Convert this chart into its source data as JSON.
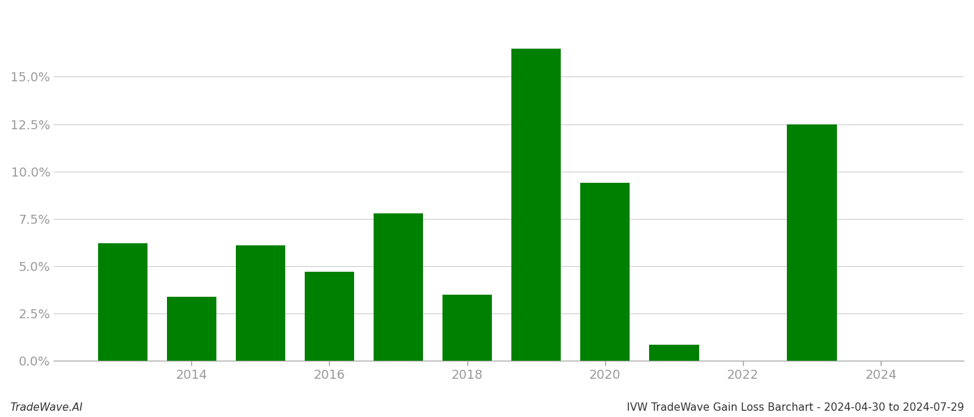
{
  "years": [
    2013,
    2014,
    2015,
    2016,
    2017,
    2018,
    2019,
    2020,
    2021,
    2022,
    2023
  ],
  "values": [
    0.062,
    0.034,
    0.061,
    0.047,
    0.078,
    0.035,
    0.165,
    0.094,
    0.0085,
    0.0,
    0.125
  ],
  "bar_color": "#008000",
  "background_color": "#ffffff",
  "footer_left": "TradeWave.AI",
  "footer_right": "IVW TradeWave Gain Loss Barchart - 2024-04-30 to 2024-07-29",
  "ytick_labels": [
    "0.0%",
    "2.5%",
    "5.0%",
    "7.5%",
    "10.0%",
    "12.5%",
    "15.0%"
  ],
  "ytick_values": [
    0.0,
    0.025,
    0.05,
    0.075,
    0.1,
    0.125,
    0.15
  ],
  "xtick_positions": [
    2014,
    2016,
    2018,
    2020,
    2022,
    2024
  ],
  "xtick_labels": [
    "2014",
    "2016",
    "2018",
    "2020",
    "2022",
    "2024"
  ],
  "ylim": [
    0.0,
    0.185
  ],
  "xlim": [
    2012.0,
    2025.2
  ],
  "bar_width": 0.72,
  "grid_color": "#cccccc",
  "axis_color": "#aaaaaa",
  "tick_color": "#999999",
  "text_color": "#333333",
  "footer_fontsize": 11
}
